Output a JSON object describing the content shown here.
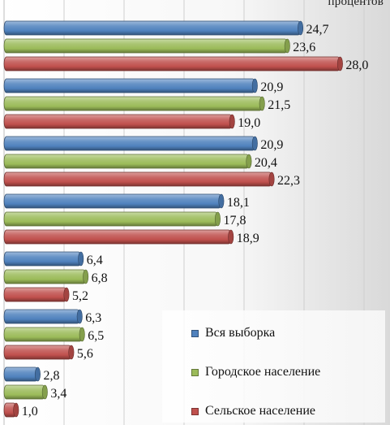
{
  "chart_data": {
    "type": "bar",
    "orientation": "horizontal",
    "unit_label": "процентов",
    "categories": [
      "",
      "",
      "",
      "",
      "",
      "",
      ""
    ],
    "series": [
      {
        "name": "Вся выборка",
        "color": "#4f81bd",
        "values": [
          24.7,
          20.9,
          20.9,
          18.1,
          6.4,
          6.3,
          2.8
        ],
        "labels": [
          "24,7",
          "20,9",
          "20,9",
          "18,1",
          "6,4",
          "6,3",
          "2,8"
        ]
      },
      {
        "name": "Городское население",
        "color": "#9bbb59",
        "values": [
          23.6,
          21.5,
          20.4,
          17.8,
          6.8,
          6.5,
          3.4
        ],
        "labels": [
          "23,6",
          "21,5",
          "20,4",
          "17,8",
          "6,8",
          "6,5",
          "3,4"
        ]
      },
      {
        "name": "Сельское население",
        "color": "#c0504d",
        "values": [
          28.0,
          19.0,
          22.3,
          18.9,
          5.2,
          5.6,
          1.0
        ],
        "labels": [
          "28,0",
          "19,0",
          "22,3",
          "18,9",
          "5,2",
          "5,6",
          "1,0"
        ]
      }
    ],
    "xlim": [
      0,
      30
    ],
    "grid": true,
    "legend_position": "bottom-right"
  }
}
